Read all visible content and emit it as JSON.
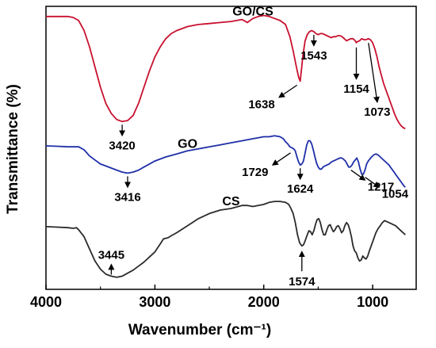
{
  "chart_data": {
    "type": "line",
    "xlabel": "Wavenumber (cm⁻¹)",
    "ylabel": "Transmittance (%)",
    "xlim": [
      4000,
      600
    ],
    "x_reversed": true,
    "x_ticks": [
      4000,
      3000,
      2000,
      1000
    ],
    "y_ticks_shown": false,
    "grid": false,
    "series": [
      {
        "name": "GO/CS",
        "color": "#c8102e",
        "points": [
          [
            4000,
            95
          ],
          [
            3800,
            95
          ],
          [
            3750,
            94.5
          ],
          [
            3700,
            93
          ],
          [
            3650,
            88
          ],
          [
            3600,
            80
          ],
          [
            3550,
            70
          ],
          [
            3500,
            60
          ],
          [
            3450,
            52
          ],
          [
            3400,
            47
          ],
          [
            3350,
            44
          ],
          [
            3300,
            43
          ],
          [
            3250,
            43.5
          ],
          [
            3200,
            46
          ],
          [
            3150,
            52
          ],
          [
            3100,
            60
          ],
          [
            3050,
            68
          ],
          [
            3000,
            75
          ],
          [
            2950,
            80
          ],
          [
            2900,
            84
          ],
          [
            2850,
            86.5
          ],
          [
            2800,
            88
          ],
          [
            2700,
            90
          ],
          [
            2600,
            91
          ],
          [
            2500,
            91.5
          ],
          [
            2400,
            92
          ],
          [
            2300,
            92.5
          ],
          [
            2200,
            93.5
          ],
          [
            2150,
            92
          ],
          [
            2100,
            94
          ],
          [
            2050,
            95
          ],
          [
            2000,
            95.5
          ],
          [
            1950,
            95
          ],
          [
            1900,
            94
          ],
          [
            1850,
            93
          ],
          [
            1800,
            91
          ],
          [
            1760,
            85
          ],
          [
            1730,
            78
          ],
          [
            1700,
            70
          ],
          [
            1680,
            65
          ],
          [
            1665,
            63
          ],
          [
            1655,
            68
          ],
          [
            1640,
            76
          ],
          [
            1620,
            83
          ],
          [
            1600,
            86
          ],
          [
            1580,
            87.5
          ],
          [
            1560,
            88
          ],
          [
            1540,
            87.5
          ],
          [
            1520,
            86.5
          ],
          [
            1500,
            86
          ],
          [
            1480,
            86.5
          ],
          [
            1460,
            86.5
          ],
          [
            1440,
            86
          ],
          [
            1420,
            85.5
          ],
          [
            1400,
            85
          ],
          [
            1380,
            84.5
          ],
          [
            1360,
            85
          ],
          [
            1340,
            85
          ],
          [
            1320,
            85.5
          ],
          [
            1300,
            85.5
          ],
          [
            1280,
            85
          ],
          [
            1260,
            84
          ],
          [
            1240,
            83
          ],
          [
            1220,
            83.5
          ],
          [
            1200,
            84
          ],
          [
            1180,
            84
          ],
          [
            1160,
            83
          ],
          [
            1150,
            82
          ],
          [
            1140,
            82.5
          ],
          [
            1120,
            83
          ],
          [
            1100,
            84
          ],
          [
            1080,
            83.5
          ],
          [
            1060,
            83.5
          ],
          [
            1040,
            84
          ],
          [
            1020,
            83.5
          ],
          [
            1000,
            82
          ],
          [
            980,
            79
          ],
          [
            960,
            75
          ],
          [
            940,
            70
          ],
          [
            920,
            66
          ],
          [
            900,
            62
          ],
          [
            880,
            59
          ],
          [
            860,
            56
          ],
          [
            840,
            53
          ],
          [
            820,
            50
          ],
          [
            800,
            47
          ],
          [
            780,
            44.5
          ],
          [
            760,
            42.5
          ],
          [
            740,
            41
          ],
          [
            720,
            40
          ],
          [
            700,
            39.5
          ]
        ]
      },
      {
        "name": "GO",
        "color": "#1f2fa8",
        "points": [
          [
            4000,
            31
          ],
          [
            3900,
            30.8
          ],
          [
            3800,
            30.5
          ],
          [
            3700,
            30.5
          ],
          [
            3650,
            29
          ],
          [
            3600,
            26
          ],
          [
            3550,
            24
          ],
          [
            3500,
            22
          ],
          [
            3450,
            21
          ],
          [
            3400,
            20
          ],
          [
            3350,
            19
          ],
          [
            3300,
            18
          ],
          [
            3250,
            17.5
          ],
          [
            3200,
            18
          ],
          [
            3150,
            19
          ],
          [
            3100,
            20.5
          ],
          [
            3050,
            22
          ],
          [
            3000,
            23.5
          ],
          [
            2900,
            25.5
          ],
          [
            2800,
            27
          ],
          [
            2700,
            28.5
          ],
          [
            2600,
            29.5
          ],
          [
            2500,
            30.5
          ],
          [
            2400,
            31.5
          ],
          [
            2300,
            32.5
          ],
          [
            2200,
            33.5
          ],
          [
            2100,
            34.5
          ],
          [
            2000,
            35.5
          ],
          [
            1950,
            35.5
          ],
          [
            1900,
            36
          ],
          [
            1850,
            35.5
          ],
          [
            1820,
            34.5
          ],
          [
            1800,
            33
          ],
          [
            1780,
            32
          ],
          [
            1760,
            30.5
          ],
          [
            1740,
            30
          ],
          [
            1725,
            29.5
          ],
          [
            1710,
            28.5
          ],
          [
            1695,
            25.5
          ],
          [
            1680,
            23
          ],
          [
            1665,
            21.5
          ],
          [
            1650,
            22
          ],
          [
            1635,
            23.5
          ],
          [
            1620,
            27.5
          ],
          [
            1605,
            31.5
          ],
          [
            1590,
            33.5
          ],
          [
            1575,
            33.5
          ],
          [
            1560,
            32
          ],
          [
            1545,
            29
          ],
          [
            1530,
            25.5
          ],
          [
            1515,
            22.5
          ],
          [
            1500,
            20.5
          ],
          [
            1485,
            19.5
          ],
          [
            1470,
            19.5
          ],
          [
            1455,
            20.5
          ],
          [
            1440,
            21
          ],
          [
            1420,
            21.5
          ],
          [
            1400,
            22
          ],
          [
            1380,
            23
          ],
          [
            1360,
            23.5
          ],
          [
            1340,
            24
          ],
          [
            1320,
            24.5
          ],
          [
            1300,
            25
          ],
          [
            1285,
            25
          ],
          [
            1270,
            24.5
          ],
          [
            1250,
            23.5
          ],
          [
            1230,
            21.5
          ],
          [
            1220,
            20.5
          ],
          [
            1205,
            20.5
          ],
          [
            1190,
            21.5
          ],
          [
            1175,
            23
          ],
          [
            1160,
            24
          ],
          [
            1145,
            25
          ],
          [
            1130,
            23
          ],
          [
            1115,
            19.5
          ],
          [
            1100,
            17
          ],
          [
            1085,
            17
          ],
          [
            1070,
            19
          ],
          [
            1055,
            22
          ],
          [
            1040,
            23.5
          ],
          [
            1025,
            24.5
          ],
          [
            1010,
            25.5
          ],
          [
            990,
            26.5
          ],
          [
            970,
            27
          ],
          [
            950,
            26.5
          ],
          [
            930,
            25.5
          ],
          [
            910,
            24.5
          ],
          [
            890,
            23.5
          ],
          [
            870,
            22.5
          ],
          [
            850,
            21.5
          ],
          [
            830,
            20
          ],
          [
            810,
            18.5
          ],
          [
            790,
            17
          ],
          [
            770,
            15.5
          ],
          [
            750,
            14
          ],
          [
            730,
            12.5
          ],
          [
            710,
            11
          ],
          [
            700,
            10.5
          ]
        ]
      },
      {
        "name": "CS",
        "color": "#2b2b2b",
        "points": [
          [
            4000,
            -9
          ],
          [
            3900,
            -9.2
          ],
          [
            3800,
            -9.5
          ],
          [
            3750,
            -9.8
          ],
          [
            3720,
            -9.5
          ],
          [
            3700,
            -10.5
          ],
          [
            3650,
            -14
          ],
          [
            3600,
            -20
          ],
          [
            3550,
            -26
          ],
          [
            3500,
            -30
          ],
          [
            3450,
            -32.5
          ],
          [
            3400,
            -33.5
          ],
          [
            3350,
            -34
          ],
          [
            3300,
            -33.5
          ],
          [
            3250,
            -32
          ],
          [
            3200,
            -30.5
          ],
          [
            3150,
            -28.5
          ],
          [
            3100,
            -26.5
          ],
          [
            3050,
            -24
          ],
          [
            3000,
            -21.5
          ],
          [
            2950,
            -17.5
          ],
          [
            2920,
            -15
          ],
          [
            2880,
            -14.5
          ],
          [
            2850,
            -13.5
          ],
          [
            2800,
            -12
          ],
          [
            2700,
            -8.5
          ],
          [
            2600,
            -5
          ],
          [
            2500,
            -2.5
          ],
          [
            2400,
            -0.8
          ],
          [
            2300,
            0
          ],
          [
            2200,
            1.5
          ],
          [
            2150,
            1.5
          ],
          [
            2100,
            1
          ],
          [
            2000,
            2
          ],
          [
            1950,
            3
          ],
          [
            1900,
            3.5
          ],
          [
            1850,
            3.5
          ],
          [
            1800,
            3
          ],
          [
            1770,
            2
          ],
          [
            1750,
            0
          ],
          [
            1730,
            -2.5
          ],
          [
            1710,
            -7
          ],
          [
            1690,
            -13
          ],
          [
            1670,
            -17
          ],
          [
            1650,
            -18.5
          ],
          [
            1635,
            -18
          ],
          [
            1620,
            -16
          ],
          [
            1600,
            -13
          ],
          [
            1585,
            -11
          ],
          [
            1570,
            -11.5
          ],
          [
            1555,
            -13
          ],
          [
            1540,
            -11
          ],
          [
            1525,
            -8
          ],
          [
            1510,
            -5.5
          ],
          [
            1495,
            -5
          ],
          [
            1480,
            -7
          ],
          [
            1465,
            -10.5
          ],
          [
            1450,
            -13
          ],
          [
            1435,
            -13
          ],
          [
            1420,
            -10.5
          ],
          [
            1405,
            -8.5
          ],
          [
            1390,
            -8
          ],
          [
            1375,
            -10
          ],
          [
            1360,
            -11.5
          ],
          [
            1345,
            -10.5
          ],
          [
            1330,
            -9
          ],
          [
            1315,
            -8.5
          ],
          [
            1300,
            -10
          ],
          [
            1285,
            -12
          ],
          [
            1270,
            -11
          ],
          [
            1255,
            -8.5
          ],
          [
            1240,
            -7
          ],
          [
            1225,
            -8
          ],
          [
            1210,
            -10.5
          ],
          [
            1195,
            -14
          ],
          [
            1180,
            -18.5
          ],
          [
            1165,
            -21
          ],
          [
            1150,
            -22
          ],
          [
            1135,
            -24.5
          ],
          [
            1120,
            -26
          ],
          [
            1105,
            -25.5
          ],
          [
            1090,
            -23.5
          ],
          [
            1075,
            -24.5
          ],
          [
            1060,
            -25
          ],
          [
            1045,
            -23.5
          ],
          [
            1030,
            -21
          ],
          [
            1010,
            -18
          ],
          [
            990,
            -15
          ],
          [
            970,
            -12
          ],
          [
            950,
            -10
          ],
          [
            930,
            -8.5
          ],
          [
            910,
            -7
          ],
          [
            890,
            -6
          ],
          [
            870,
            -6.5
          ],
          [
            850,
            -7
          ],
          [
            830,
            -7.5
          ],
          [
            810,
            -8
          ],
          [
            790,
            -8.5
          ],
          [
            770,
            -9.5
          ],
          [
            750,
            -10.5
          ],
          [
            730,
            -11.5
          ],
          [
            710,
            -12.5
          ],
          [
            700,
            -13
          ]
        ]
      }
    ],
    "annotations": [
      {
        "text": "3420",
        "series": "GO/CS",
        "at": 3300,
        "dir": "down",
        "label": "below"
      },
      {
        "text": "1638",
        "series": "GO/CS",
        "at": 1665,
        "dir": "down-left",
        "label": "below-left"
      },
      {
        "text": "1543",
        "series": "GO/CS",
        "at": 1540,
        "dir": "down",
        "label": "below"
      },
      {
        "text": "1154",
        "series": "GO/CS",
        "at": 1150,
        "dir": "down-near",
        "label": "below"
      },
      {
        "text": "1073",
        "series": "GO/CS",
        "at": 1060,
        "dir": "down-right",
        "label": "below"
      },
      {
        "text": "3416",
        "series": "GO",
        "at": 3250,
        "dir": "down",
        "label": "below"
      },
      {
        "text": "1729",
        "series": "GO",
        "at": 1725,
        "dir": "down-left",
        "label": "below-left"
      },
      {
        "text": "1624",
        "series": "GO",
        "at": 1665,
        "dir": "down",
        "label": "below"
      },
      {
        "text": "1217",
        "series": "GO",
        "at": 1220,
        "dir": "down-right",
        "label": "below-right"
      },
      {
        "text": "1054",
        "series": "GO",
        "at": 1090,
        "dir": "down-right",
        "label": "below-right"
      },
      {
        "text": "3445",
        "series": "CS",
        "at": 3400,
        "dir": "up",
        "label": "above"
      },
      {
        "text": "1574",
        "series": "CS",
        "at": 1650,
        "dir": "up",
        "label": "below"
      }
    ]
  }
}
